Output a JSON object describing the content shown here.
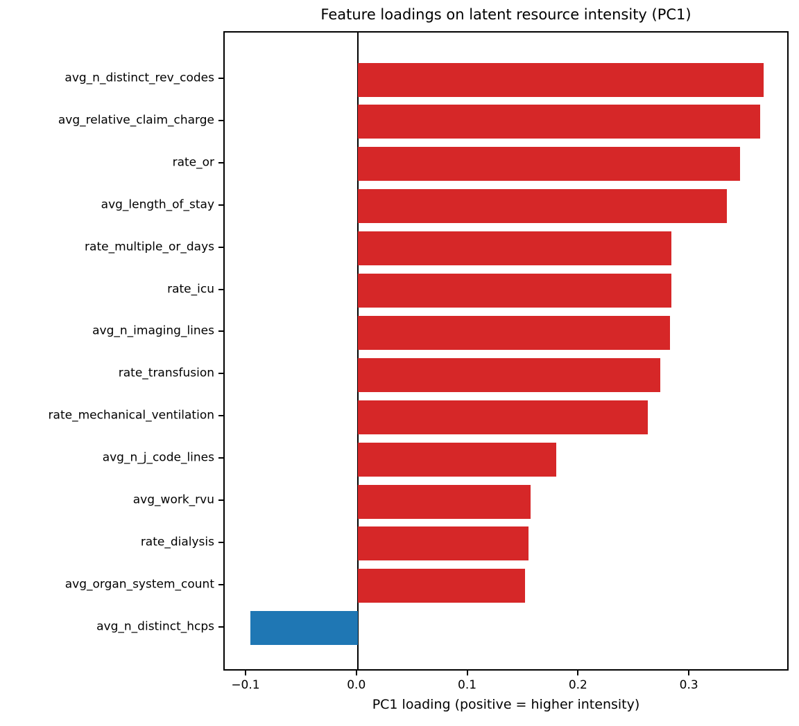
{
  "chart_data": {
    "type": "bar",
    "orientation": "horizontal",
    "title": "Feature loadings on latent resource intensity (PC1)",
    "xlabel": "PC1 loading (positive = higher intensity)",
    "categories": [
      "avg_n_distinct_rev_codes",
      "avg_relative_claim_charge",
      "rate_or",
      "avg_length_of_stay",
      "rate_multiple_or_days",
      "rate_icu",
      "avg_n_imaging_lines",
      "rate_transfusion",
      "rate_mechanical_ventilation",
      "avg_n_j_code_lines",
      "avg_work_rvu",
      "rate_dialysis",
      "avg_organ_system_count",
      "avg_n_distinct_hcps"
    ],
    "values": [
      0.366,
      0.363,
      0.345,
      0.333,
      0.283,
      0.283,
      0.282,
      0.273,
      0.262,
      0.179,
      0.156,
      0.154,
      0.151,
      -0.097
    ],
    "xlim": [
      -0.12,
      0.39
    ],
    "xticks": [
      -0.1,
      0.0,
      0.1,
      0.2,
      0.3
    ],
    "xtick_labels": [
      "−0.1",
      "0.0",
      "0.1",
      "0.2",
      "0.3"
    ],
    "positive_color": "#d62728",
    "negative_color": "#1f77b4",
    "axis_color": "#000000",
    "grid": false,
    "legend": false,
    "zero_line": true
  }
}
